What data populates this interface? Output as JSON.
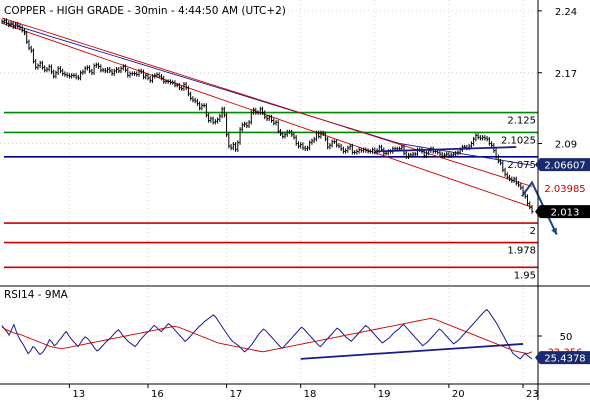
{
  "header": {
    "title": "COPPER - HIGH GRADE - 30min - 4:44:50 AM (UTC+2)",
    "rsi_title": "RSI14 - 9MA"
  },
  "colors": {
    "price": "#000000",
    "envelope": "#cc0000",
    "moving_average": "#1a1a8c",
    "trendline": "#1a1a8c",
    "resistance": "#008800",
    "support": "#cc0000",
    "pivot": "#00008b",
    "arrow": "#1f3f8c",
    "badge_last": "#000000",
    "badge_rsi": "#1a2a6e",
    "badge_upper": "#1a2a6e",
    "badge_red": "#cc0000"
  },
  "chart_data": [
    {
      "type": "line",
      "panel": "price",
      "title": "COPPER - HIGH GRADE - 30min - 4:44:50 AM (UTC+2)",
      "ylim": [
        1.93,
        2.25
      ],
      "grid": true,
      "x_ticks": [
        "13",
        "16",
        "17",
        "18",
        "19",
        "20",
        "23"
      ],
      "x_tick_index": [
        30,
        65,
        100,
        133,
        166,
        199,
        232
      ],
      "y_ticks": [
        {
          "value": 2.24,
          "label": "2.24"
        },
        {
          "value": 2.17,
          "label": "2.17"
        },
        {
          "value": 2.09,
          "label": "2.09"
        }
      ],
      "levels": [
        {
          "value": 2.125,
          "label": "2.125",
          "kind": "resistance"
        },
        {
          "value": 2.1025,
          "label": "2.1025",
          "kind": "resistance"
        },
        {
          "value": 2.075,
          "label": "2.075",
          "kind": "pivot"
        },
        {
          "value": 2.0,
          "label": "2",
          "kind": "support"
        },
        {
          "value": 1.978,
          "label": "1.978",
          "kind": "support"
        },
        {
          "value": 1.95,
          "label": "1.95",
          "kind": "support"
        }
      ],
      "price_badges": [
        {
          "value": 2.06607,
          "label": "2.06607",
          "style": "upper"
        },
        {
          "value": 2.03985,
          "label": "2.03985",
          "style": "red"
        },
        {
          "value": 2.013,
          "label": "2.013",
          "style": "last"
        }
      ],
      "axis_label_stub": "1",
      "series": [
        {
          "role": "price",
          "values": [
            2.228,
            2.229,
            2.226,
            2.224,
            2.226,
            2.222,
            2.225,
            2.223,
            2.221,
            2.218,
            2.215,
            2.205,
            2.198,
            2.195,
            2.183,
            2.176,
            2.178,
            2.181,
            2.176,
            2.173,
            2.174,
            2.177,
            2.171,
            2.166,
            2.17,
            2.175,
            2.172,
            2.169,
            2.168,
            2.167,
            2.166,
            2.167,
            2.167,
            2.165,
            2.164,
            2.17,
            2.171,
            2.175,
            2.176,
            2.172,
            2.17,
            2.178,
            2.179,
            2.177,
            2.173,
            2.173,
            2.172,
            2.174,
            2.172,
            2.169,
            2.172,
            2.174,
            2.172,
            2.175,
            2.177,
            2.173,
            2.167,
            2.169,
            2.169,
            2.169,
            2.168,
            2.172,
            2.171,
            2.165,
            2.167,
            2.164,
            2.161,
            2.166,
            2.167,
            2.168,
            2.166,
            2.164,
            2.16,
            2.16,
            2.16,
            2.159,
            2.159,
            2.156,
            2.156,
            2.153,
            2.152,
            2.157,
            2.153,
            2.146,
            2.141,
            2.139,
            2.138,
            2.135,
            2.13,
            2.133,
            2.133,
            2.122,
            2.116,
            2.118,
            2.114,
            2.115,
            2.117,
            2.121,
            2.129,
            2.122,
            2.1,
            2.087,
            2.085,
            2.089,
            2.083,
            2.091,
            2.106,
            2.111,
            2.112,
            2.11,
            2.114,
            2.125,
            2.128,
            2.125,
            2.125,
            2.129,
            2.125,
            2.12,
            2.118,
            2.12,
            2.116,
            2.113,
            2.114,
            2.104,
            2.101,
            2.098,
            2.1,
            2.103,
            2.103,
            2.1,
            2.097,
            2.09,
            2.087,
            2.089,
            2.085,
            2.084,
            2.085,
            2.091,
            2.093,
            2.095,
            2.102,
            2.098,
            2.102,
            2.101,
            2.095,
            2.086,
            2.088,
            2.092,
            2.092,
            2.088,
            2.087,
            2.084,
            2.081,
            2.082,
            2.085,
            2.087,
            2.08,
            2.08,
            2.081,
            2.083,
            2.082,
            2.083,
            2.082,
            2.081,
            2.081,
            2.083,
            2.08,
            2.082,
            2.086,
            2.083,
            2.079,
            2.079,
            2.081,
            2.081,
            2.084,
            2.084,
            2.084,
            2.084,
            2.086,
            2.079,
            2.075,
            2.077,
            2.077,
            2.078,
            2.078,
            2.083,
            2.083,
            2.081,
            2.076,
            2.079,
            2.082,
            2.084,
            2.081,
            2.081,
            2.08,
            2.078,
            2.076,
            2.077,
            2.078,
            2.076,
            2.077,
            2.078,
            2.079,
            2.08,
            2.083,
            2.086,
            2.086,
            2.085,
            2.087,
            2.09,
            2.095,
            2.099,
            2.097,
            2.096,
            2.097,
            2.096,
            2.095,
            2.09,
            2.088,
            2.082,
            2.075,
            2.07,
            2.068,
            2.06,
            2.055,
            2.052,
            2.05,
            2.048,
            2.05,
            2.045,
            2.043,
            2.04,
            2.035,
            2.03,
            2.022,
            2.018,
            2.013
          ]
        },
        {
          "role": "moving-average",
          "values": [
            2.228,
            2.2222,
            2.2165,
            2.2107,
            2.205,
            2.1992,
            2.1935,
            2.1878,
            2.182,
            2.1763,
            2.1705,
            2.1648,
            2.159,
            2.1533,
            2.1475,
            2.1418,
            2.136,
            2.1303,
            2.1245,
            2.1188,
            2.113,
            2.1073,
            2.1015,
            2.0958,
            2.09,
            2.0869,
            2.0839,
            2.0808,
            2.0777,
            2.0746,
            2.0716,
            2.0685,
            2.0654
          ]
        },
        {
          "role": "envelope",
          "values": [
            2.226,
            2.2156,
            2.2052,
            2.1948,
            2.1844,
            2.174,
            2.1636,
            2.1532,
            2.1428,
            2.1324,
            2.122,
            2.1116,
            2.1012,
            2.0908,
            2.0804,
            2.07,
            2.0596,
            2.0492,
            2.0388,
            2.0284,
            2.018
          ]
        },
        {
          "role": "envelope",
          "values": [
            2.232,
            2.2254,
            2.2189,
            2.2123,
            2.2057,
            2.1991,
            2.1926,
            2.186,
            2.1794,
            2.1729,
            2.1663,
            2.1597,
            2.1531,
            2.1466,
            2.14,
            2.1334,
            2.1269,
            2.1203,
            2.1137,
            2.1071,
            2.1006,
            2.094,
            2.0874,
            2.0809,
            2.0743,
            2.0677,
            2.0611,
            2.0546,
            2.048,
            2.0414
          ]
        }
      ],
      "trendline": {
        "from": [
          166,
          2.081
        ],
        "to": [
          229,
          2.086
        ]
      },
      "arrow": {
        "from": [
          236,
          2.046
        ],
        "to": [
          247,
          1.987
        ]
      }
    },
    {
      "type": "line",
      "panel": "rsi",
      "title": "RSI14 - 9MA",
      "ylim": [
        0,
        100
      ],
      "y_ticks": [
        {
          "value": 50,
          "label": "50"
        }
      ],
      "price_badges": [
        {
          "value": 32.356,
          "label": "32.356",
          "style": "red"
        },
        {
          "value": 25.4378,
          "label": "25.4378",
          "style": "rsi"
        }
      ],
      "series": [
        {
          "role": "rsi",
          "values": [
            62,
            58,
            55,
            51,
            57,
            63,
            55,
            49,
            44,
            40,
            35,
            30,
            33,
            38,
            36,
            32,
            29,
            31,
            35,
            40,
            46,
            43,
            39,
            41,
            45,
            48,
            52,
            55,
            51,
            47,
            44,
            41,
            38,
            42,
            46,
            49,
            47,
            44,
            40,
            36,
            33,
            35,
            38,
            41,
            44,
            46,
            49,
            52,
            55,
            57,
            54,
            50,
            47,
            44,
            42,
            40,
            38,
            41,
            45,
            48,
            51,
            54,
            56,
            59,
            62,
            60,
            57,
            55,
            58,
            61,
            64,
            62,
            59,
            56,
            53,
            50,
            47,
            44,
            46,
            49,
            52,
            55,
            58,
            61,
            63,
            66,
            68,
            70,
            72,
            74,
            71,
            67,
            63,
            59,
            55,
            51,
            47,
            44,
            42,
            40,
            38,
            35,
            32,
            34,
            37,
            40,
            44,
            48,
            52,
            55,
            58,
            56,
            53,
            50,
            47,
            44,
            41,
            38,
            36,
            39,
            42,
            45,
            48,
            51,
            54,
            57,
            60,
            58,
            55,
            52,
            49,
            46,
            43,
            40,
            38,
            41,
            44,
            47,
            50,
            53,
            56,
            59,
            57,
            54,
            51,
            48,
            46,
            44,
            47,
            50,
            53,
            56,
            59,
            62,
            60,
            57,
            54,
            51,
            48,
            45,
            42,
            44,
            46,
            48,
            51,
            54,
            56,
            58,
            61,
            63,
            60,
            57,
            54,
            51,
            48,
            45,
            42,
            39,
            41,
            43,
            46,
            49,
            52,
            55,
            58,
            56,
            53,
            50,
            47,
            44,
            41,
            43,
            45,
            48,
            51,
            54,
            57,
            60,
            63,
            66,
            69,
            72,
            75,
            78,
            80,
            77,
            73,
            69,
            65,
            60,
            55,
            50,
            45,
            40,
            35,
            30,
            28,
            26,
            24,
            27,
            30,
            28,
            26,
            24
          ]
        },
        {
          "role": "rsi-ma",
          "values": [
            60,
            57,
            55,
            53,
            52,
            50,
            48,
            46,
            44,
            42,
            40,
            38,
            37,
            36,
            36,
            37,
            38,
            39,
            40,
            41,
            42,
            43,
            44,
            45,
            46,
            47,
            48,
            49,
            50,
            51,
            52,
            53,
            54,
            55,
            56,
            57,
            58,
            59,
            60,
            61,
            60,
            58,
            56,
            54,
            52,
            50,
            48,
            46,
            44,
            42,
            41,
            40,
            39,
            38,
            37,
            36,
            35,
            34,
            33,
            32,
            33,
            34,
            35,
            36,
            37,
            38,
            39,
            40,
            41,
            42,
            43,
            44,
            45,
            46,
            47,
            48,
            49,
            50,
            51,
            52,
            53,
            54,
            55,
            56,
            57,
            58,
            59,
            60,
            61,
            62,
            63,
            64,
            65,
            66,
            67,
            68,
            69,
            70,
            69,
            67,
            65,
            63,
            61,
            59,
            57,
            55,
            53,
            51,
            49,
            47,
            45,
            43,
            41,
            39,
            37,
            35,
            33,
            32,
            31,
            30,
            32
          ]
        }
      ],
      "trendline": {
        "from": [
          133,
          24
        ],
        "to": [
          232,
          41
        ]
      }
    }
  ]
}
